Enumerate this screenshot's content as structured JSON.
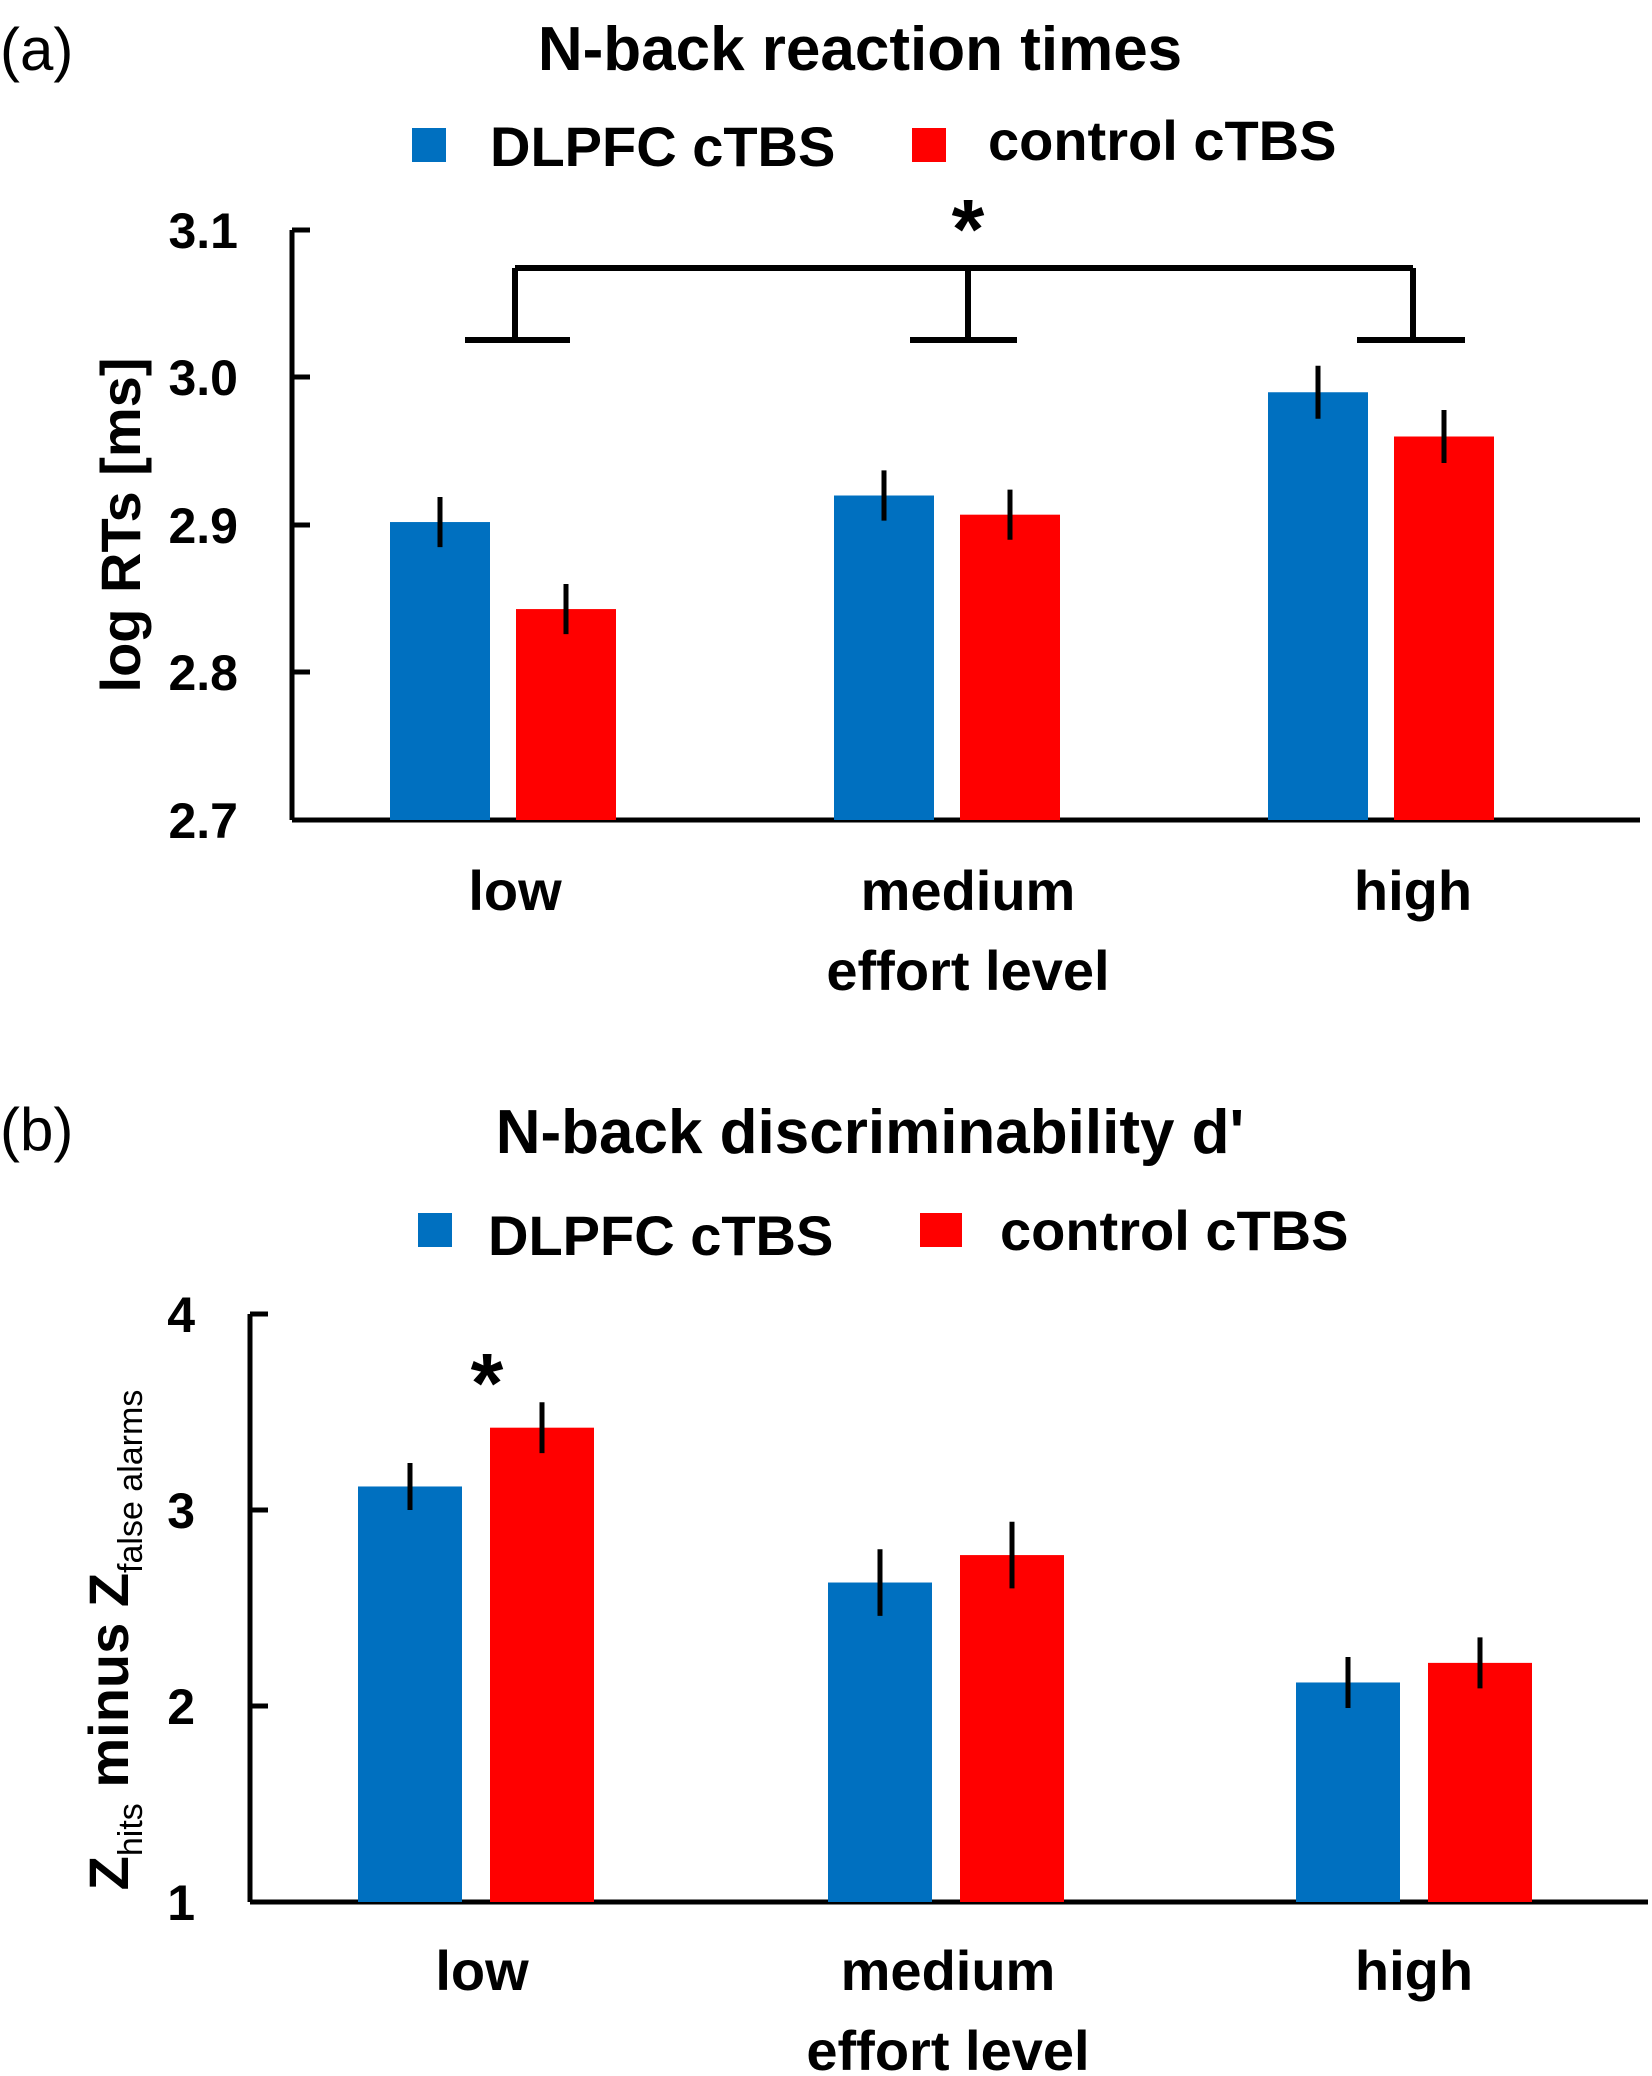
{
  "colors": {
    "dlpfc": "#0070c0",
    "control": "#ff0000",
    "axis": "#000000"
  },
  "chart_data": [
    {
      "panel_label": "(a)",
      "type": "bar",
      "title": "N-back reaction times",
      "xlabel": "effort level",
      "ylabel": "log RTs [ms]",
      "ylim": [
        2.7,
        3.1
      ],
      "yticks": [
        "2.7",
        "2.8",
        "2.9",
        "3.0",
        "3.1"
      ],
      "categories": [
        "low",
        "medium",
        "high"
      ],
      "legend_position": "top-center",
      "grid": false,
      "series": [
        {
          "name": "DLPFC cTBS",
          "color": "#0070c0",
          "values": [
            2.902,
            2.92,
            2.99
          ],
          "errors": [
            0.017,
            0.017,
            0.018
          ]
        },
        {
          "name": "control cTBS",
          "color": "#ff0000",
          "values": [
            2.843,
            2.907,
            2.96
          ],
          "errors": [
            0.017,
            0.017,
            0.018
          ]
        }
      ],
      "annotations": [
        {
          "type": "bracket",
          "label": "*",
          "spans": [
            "low",
            "medium",
            "high"
          ]
        }
      ]
    },
    {
      "panel_label": "(b)",
      "type": "bar",
      "title": "N-back discriminability d'",
      "xlabel": "effort level",
      "ylabel": {
        "z": "Z",
        "sub1": "hits",
        "middle": " minus Z",
        "sub2": "false alarms"
      },
      "ylim": [
        1,
        4
      ],
      "yticks": [
        "1",
        "2",
        "3",
        "4"
      ],
      "categories": [
        "low",
        "medium",
        "high"
      ],
      "legend_position": "top-center",
      "grid": false,
      "series": [
        {
          "name": "DLPFC cTBS",
          "color": "#0070c0",
          "values": [
            3.12,
            2.63,
            2.12
          ],
          "errors": [
            0.12,
            0.17,
            0.13
          ]
        },
        {
          "name": "control cTBS",
          "color": "#ff0000",
          "values": [
            3.42,
            2.77,
            2.22
          ],
          "errors": [
            0.13,
            0.17,
            0.13
          ]
        }
      ],
      "annotations": [
        {
          "type": "star",
          "label": "*",
          "category": "low"
        }
      ]
    }
  ]
}
